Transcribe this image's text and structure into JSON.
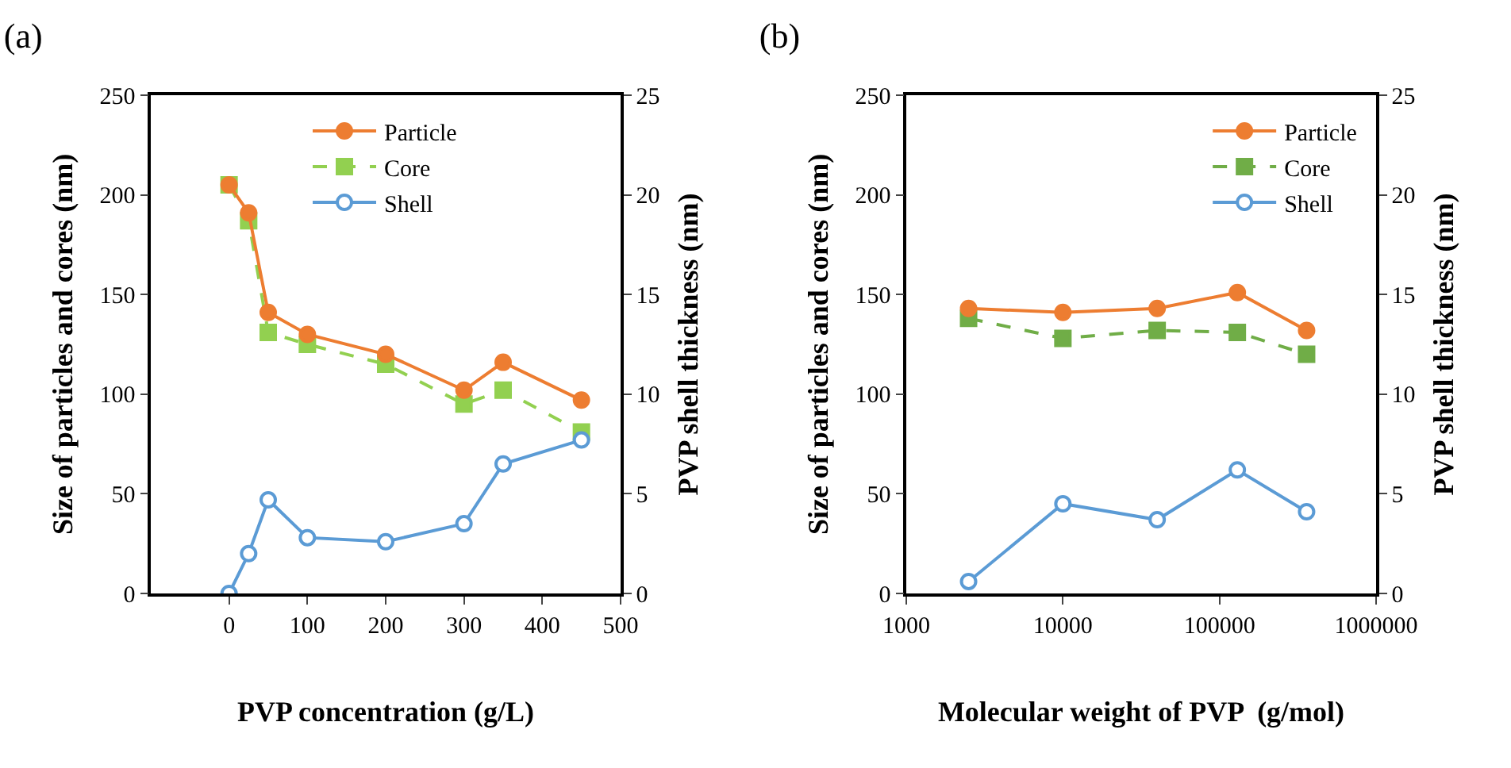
{
  "chart_data": [
    {
      "type": "line",
      "title": "(a)",
      "xlabel": "PVP concentration (g/L)",
      "ylabel": "Size of particles and cores (nm)",
      "y2label": "PVP shell thickness (nm)",
      "x": [
        0,
        25,
        50,
        100,
        200,
        300,
        350,
        450
      ],
      "xlim": [
        -100,
        500
      ],
      "xticks": [
        0,
        100,
        200,
        300,
        400,
        500
      ],
      "ylim": [
        0,
        250
      ],
      "yticks": [
        0,
        50,
        100,
        150,
        200,
        250
      ],
      "y2lim": [
        0,
        25
      ],
      "y2ticks": [
        0,
        5,
        10,
        15,
        20,
        25
      ],
      "grid": false,
      "legend": "top",
      "series": [
        {
          "name": "Particle",
          "color": "#ed7d31",
          "marker": "circle",
          "line_style": "solid",
          "values": [
            205,
            191,
            141,
            130,
            120,
            102,
            116,
            97
          ]
        },
        {
          "name": "Core",
          "color": "#92d050",
          "marker": "square",
          "line_style": "dashed",
          "values": [
            205,
            187,
            131,
            125,
            115,
            95,
            102,
            81
          ]
        },
        {
          "name": "Shell",
          "color": "#5b9bd5",
          "marker": "circle",
          "line_style": "solid",
          "axis": "y2",
          "values": [
            0,
            2.0,
            4.7,
            2.8,
            2.6,
            3.5,
            6.5,
            7.7
          ]
        }
      ]
    },
    {
      "type": "line",
      "title": "(b)",
      "xlabel": "Molecular weight of PVP  (g/mol)",
      "ylabel": "Size of particles and cores (nm)",
      "y2label": "PVP shell thickness (nm)",
      "x": [
        2500,
        10000,
        40000,
        130000,
        360000
      ],
      "log": "x",
      "xlim": [
        1000,
        1000000
      ],
      "xticks": [
        1000,
        10000,
        100000,
        1000000
      ],
      "ylim": [
        0,
        250
      ],
      "yticks": [
        0,
        50,
        100,
        150,
        200,
        250
      ],
      "y2lim": [
        0,
        25
      ],
      "y2ticks": [
        0,
        5,
        10,
        15,
        20,
        25
      ],
      "grid": false,
      "legend": "top right",
      "series": [
        {
          "name": "Particle",
          "color": "#ed7d31",
          "marker": "circle",
          "line_style": "solid",
          "values": [
            143,
            141,
            143,
            151,
            132
          ]
        },
        {
          "name": "Core",
          "color": "#70ad47",
          "marker": "square",
          "line_style": "dashed",
          "values": [
            138,
            128,
            132,
            131,
            120
          ]
        },
        {
          "name": "Shell",
          "color": "#5b9bd5",
          "marker": "circle",
          "line_style": "solid",
          "axis": "y2",
          "values": [
            0.6,
            4.5,
            3.7,
            6.2,
            4.1
          ]
        }
      ]
    }
  ]
}
